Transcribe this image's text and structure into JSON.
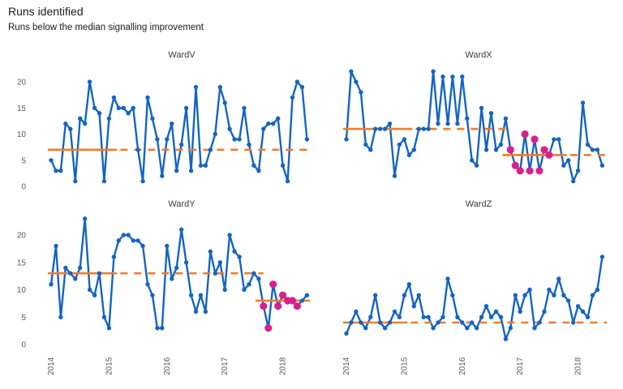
{
  "header": {
    "title": "Runs identified",
    "subtitle": "Runs below the median signalling improvement"
  },
  "chart_data": {
    "type": "line",
    "title": "Runs identified",
    "subtitle": "Runs below the median signalling improvement",
    "xlabel": "",
    "ylabel": "",
    "grid": false,
    "legend": "none",
    "ylim": [
      0,
      23.5
    ],
    "y_ticks": [
      0,
      5,
      10,
      15,
      20
    ],
    "x_ticks": [
      "2014",
      "2015",
      "2016",
      "2017",
      "2018"
    ],
    "x_tick_month_indices": [
      0,
      12,
      24,
      36,
      48
    ],
    "months": [
      "2014-01",
      "2014-02",
      "2014-03",
      "2014-04",
      "2014-05",
      "2014-06",
      "2014-07",
      "2014-08",
      "2014-09",
      "2014-10",
      "2014-11",
      "2014-12",
      "2015-01",
      "2015-02",
      "2015-03",
      "2015-04",
      "2015-05",
      "2015-06",
      "2015-07",
      "2015-08",
      "2015-09",
      "2015-10",
      "2015-11",
      "2015-12",
      "2016-01",
      "2016-02",
      "2016-03",
      "2016-04",
      "2016-05",
      "2016-06",
      "2016-07",
      "2016-08",
      "2016-09",
      "2016-10",
      "2016-11",
      "2016-12",
      "2017-01",
      "2017-02",
      "2017-03",
      "2017-04",
      "2017-05",
      "2017-06",
      "2017-07",
      "2017-08",
      "2017-09",
      "2017-10",
      "2017-11",
      "2017-12",
      "2018-01",
      "2018-02",
      "2018-03",
      "2018-04",
      "2018-05",
      "2018-06"
    ],
    "panels": [
      {
        "name": "WardV",
        "values": [
          5,
          3,
          3,
          12,
          11,
          1,
          13,
          12,
          20,
          15,
          14,
          1,
          13,
          17,
          15,
          15,
          14,
          15,
          7,
          1,
          17,
          13,
          9,
          2,
          9,
          12,
          3,
          8,
          15,
          3,
          19,
          4,
          4,
          7,
          10,
          19,
          16,
          11,
          9,
          9,
          15,
          8,
          4,
          3,
          11,
          12,
          12,
          13,
          4,
          1,
          17,
          20,
          19,
          9
        ],
        "medians": [
          {
            "value": 7,
            "solid": [
              0,
              13
            ],
            "dashed": [
              13,
              53
            ]
          }
        ],
        "highlight_indices": []
      },
      {
        "name": "WardX",
        "values": [
          9,
          22,
          20,
          18,
          8,
          7,
          11,
          11,
          11,
          12,
          2,
          8,
          9,
          6,
          7,
          11,
          11,
          11,
          22,
          12,
          21,
          12,
          21,
          12,
          21,
          13,
          5,
          4,
          15,
          7,
          14,
          7,
          8,
          13,
          7,
          4,
          3,
          10,
          3,
          9,
          3,
          7,
          6,
          9,
          9,
          4,
          5,
          1,
          3,
          16,
          8,
          7,
          7,
          4
        ],
        "medians": [
          {
            "value": 11,
            "solid": [
              0,
              13
            ],
            "dashed": [
              13,
              33
            ]
          },
          {
            "value": 6,
            "solid": [
              33,
              45
            ],
            "dashed": [
              45,
              53
            ]
          }
        ],
        "highlight_indices": [
          34,
          35,
          36,
          37,
          38,
          39,
          40,
          41,
          42
        ]
      },
      {
        "name": "WardY",
        "values": [
          11,
          18,
          5,
          14,
          13,
          12,
          14,
          23,
          10,
          9,
          13,
          5,
          3,
          16,
          19,
          20,
          20,
          19,
          19,
          18,
          11,
          9,
          3,
          3,
          18,
          12,
          14,
          21,
          15,
          9,
          6,
          9,
          6,
          17,
          13,
          15,
          10,
          20,
          17,
          16,
          10,
          11,
          13,
          12,
          7,
          3,
          11,
          7,
          9,
          8,
          8,
          7,
          8,
          9
        ],
        "medians": [
          {
            "value": 13,
            "solid": [
              0,
              13
            ],
            "dashed": [
              13,
              43
            ]
          },
          {
            "value": 8,
            "solid": [
              43,
              53
            ],
            "dashed": null
          }
        ],
        "highlight_indices": [
          44,
          45,
          46,
          47,
          48,
          49,
          50,
          51
        ]
      },
      {
        "name": "WardZ",
        "values": [
          2,
          4,
          6,
          4,
          3,
          5,
          9,
          4,
          3,
          4,
          6,
          5,
          9,
          11,
          7,
          9,
          5,
          5,
          3,
          4,
          5,
          12,
          9,
          5,
          4,
          3,
          4,
          3,
          5,
          7,
          5,
          6,
          5,
          1,
          3,
          9,
          6,
          9,
          10,
          3,
          4,
          6,
          10,
          9,
          12,
          9,
          8,
          4,
          7,
          6,
          5,
          9,
          10,
          16
        ],
        "medians": [
          {
            "value": 4,
            "solid": [
              0,
              12
            ],
            "dashed": [
              12,
              53
            ]
          }
        ],
        "highlight_indices": []
      }
    ],
    "colors": {
      "line": "#1565C0",
      "median": "#ED7D31",
      "highlight": "#D6228E",
      "axis_text": "#595959",
      "panel_title_text": "#3C3C3C",
      "title_text": "#1A1A1A"
    }
  }
}
